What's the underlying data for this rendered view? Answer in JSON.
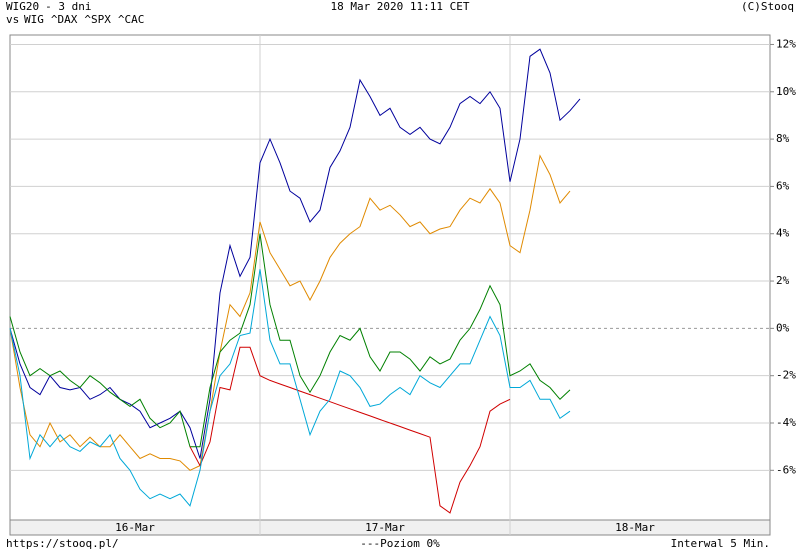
{
  "chart_data": {
    "type": "line",
    "title": "18 Mar 2020 11:11 CET",
    "subtitle": "- 3 dni",
    "copyright": "(C)Stooq",
    "legend_prefix": "vs",
    "source": "https://stooq.pl/",
    "reference_label": "---Poziom 0%",
    "reference_value": 0,
    "interval": "Interwal 5 Min.",
    "x": [
      0,
      1,
      2,
      3,
      4,
      5,
      6,
      7,
      8,
      9,
      10,
      11,
      12,
      13,
      14,
      15,
      16,
      17,
      18,
      19,
      20,
      21,
      22,
      23,
      24,
      25,
      26,
      27,
      28,
      29,
      30,
      31,
      32,
      33,
      34,
      35,
      36,
      37,
      38,
      39,
      40,
      41,
      42,
      43,
      44,
      45,
      46,
      47,
      48,
      49,
      50,
      51,
      52,
      53,
      54,
      55,
      56,
      57
    ],
    "xlim": [
      0,
      76
    ],
    "xticks": [
      {
        "value": 12.5,
        "label": "16-Mar"
      },
      {
        "value": 37.5,
        "label": "17-Mar"
      },
      {
        "value": 62.5,
        "label": "18-Mar"
      }
    ],
    "day_boundaries": [
      25,
      50
    ],
    "ylim": [
      -8.1,
      12.4
    ],
    "yticks": [
      {
        "value": 12,
        "label": "12%"
      },
      {
        "value": 10,
        "label": "10%"
      },
      {
        "value": 8,
        "label": "8%"
      },
      {
        "value": 6,
        "label": "6%"
      },
      {
        "value": 4,
        "label": "4%"
      },
      {
        "value": 2,
        "label": "2%"
      },
      {
        "value": 0,
        "label": "0%"
      },
      {
        "value": -2,
        "label": "-2%"
      },
      {
        "value": -4,
        "label": "-4%"
      },
      {
        "value": -6,
        "label": "-6%"
      }
    ],
    "grid": true,
    "series": [
      {
        "name": "WIG20",
        "color": "#00009c",
        "values": [
          0,
          -1.5,
          -2.5,
          -2.8,
          -2,
          -2.5,
          -2.6,
          -2.5,
          -3,
          -2.8,
          -2.5,
          -3,
          -3.2,
          -3.5,
          -4.2,
          -4,
          -3.8,
          -3.5,
          -4.2,
          -5.5,
          -3,
          1.5,
          3.5,
          2.2,
          3,
          7,
          8,
          7,
          5.8,
          5.5,
          4.5,
          5,
          6.8,
          7.5,
          8.5,
          10.5,
          9.8,
          9,
          9.3,
          8.5,
          8.2,
          8.5,
          8,
          7.8,
          8.5,
          9.5,
          9.8,
          9.5,
          10,
          9.3,
          6.2,
          8,
          11.5,
          11.8,
          10.8,
          8.8,
          9.2,
          9.7
        ]
      },
      {
        "name": "WIG",
        "color": "#e08a00",
        "values": [
          0,
          -2.5,
          -4.5,
          -5,
          -4,
          -4.8,
          -4.5,
          -5,
          -4.6,
          -5,
          -5,
          -4.5,
          -5,
          -5.5,
          -5.3,
          -5.5,
          -5.5,
          -5.6,
          -6,
          -5.8,
          -3.5,
          -1,
          1,
          0.5,
          1.5,
          4.5,
          3.2,
          2.5,
          1.8,
          2,
          1.2,
          2,
          3,
          3.6,
          4,
          4.3,
          5.5,
          5,
          5.2,
          4.8,
          4.3,
          4.5,
          4,
          4.2,
          4.3,
          5,
          5.5,
          5.3,
          5.9,
          5.3,
          3.5,
          3.2,
          5,
          7.3,
          6.5,
          5.3,
          5.8,
          null
        ]
      },
      {
        "name": "^DAX",
        "color": "#008000",
        "values": [
          0.5,
          -1,
          -2,
          -1.7,
          -2,
          -1.8,
          -2.2,
          -2.5,
          -2,
          -2.3,
          -2.7,
          -3,
          -3.3,
          -3,
          -3.8,
          -4.2,
          -4,
          -3.5,
          -5,
          -5,
          -2.5,
          -1,
          -0.5,
          -0.2,
          1,
          4,
          1,
          -0.5,
          -0.5,
          -2,
          -2.7,
          -2,
          -1,
          -0.3,
          -0.5,
          0,
          -1.2,
          -1.8,
          -1,
          -1,
          -1.3,
          -1.8,
          -1.2,
          -1.5,
          -1.3,
          -0.5,
          0,
          0.8,
          1.8,
          1,
          -2,
          -1.8,
          -1.5,
          -2.2,
          -2.5,
          -3,
          -2.6,
          null
        ]
      },
      {
        "name": "^SPX",
        "color": "#d00000",
        "values": [
          null,
          null,
          null,
          null,
          null,
          null,
          null,
          null,
          null,
          null,
          null,
          null,
          null,
          null,
          null,
          null,
          null,
          null,
          -5,
          -5.8,
          -4.8,
          -2.5,
          -2.6,
          -0.8,
          -0.8,
          -2,
          -2.2,
          -2.35,
          -2.5,
          -2.65,
          -2.8,
          -2.95,
          -3.1,
          -3.25,
          -3.4,
          -3.55,
          -3.7,
          -3.85,
          -4,
          -4.15,
          -4.3,
          -4.45,
          -4.6,
          -7.5,
          -7.8,
          -6.5,
          -5.8,
          -5,
          -3.5,
          -3.2,
          -3,
          null,
          null,
          null,
          null,
          null,
          null,
          null
        ]
      },
      {
        "name": "^CAC",
        "color": "#00a8d8",
        "values": [
          0,
          -2,
          -5.5,
          -4.5,
          -5,
          -4.5,
          -5,
          -5.2,
          -4.8,
          -5,
          -4.5,
          -5.5,
          -6,
          -6.8,
          -7.2,
          -7,
          -7.2,
          -7,
          -7.5,
          -6,
          -3.5,
          -2,
          -1.5,
          -0.3,
          -0.2,
          2.5,
          -0.5,
          -1.5,
          -1.5,
          -3,
          -4.5,
          -3.5,
          -3,
          -1.8,
          -2,
          -2.5,
          -3.3,
          -3.2,
          -2.8,
          -2.5,
          -2.8,
          -2,
          -2.3,
          -2.5,
          -2,
          -1.5,
          -1.5,
          -0.5,
          0.5,
          -0.3,
          -2.5,
          -2.5,
          -2.2,
          -3,
          -3,
          -3.8,
          -3.5,
          null
        ]
      }
    ]
  }
}
